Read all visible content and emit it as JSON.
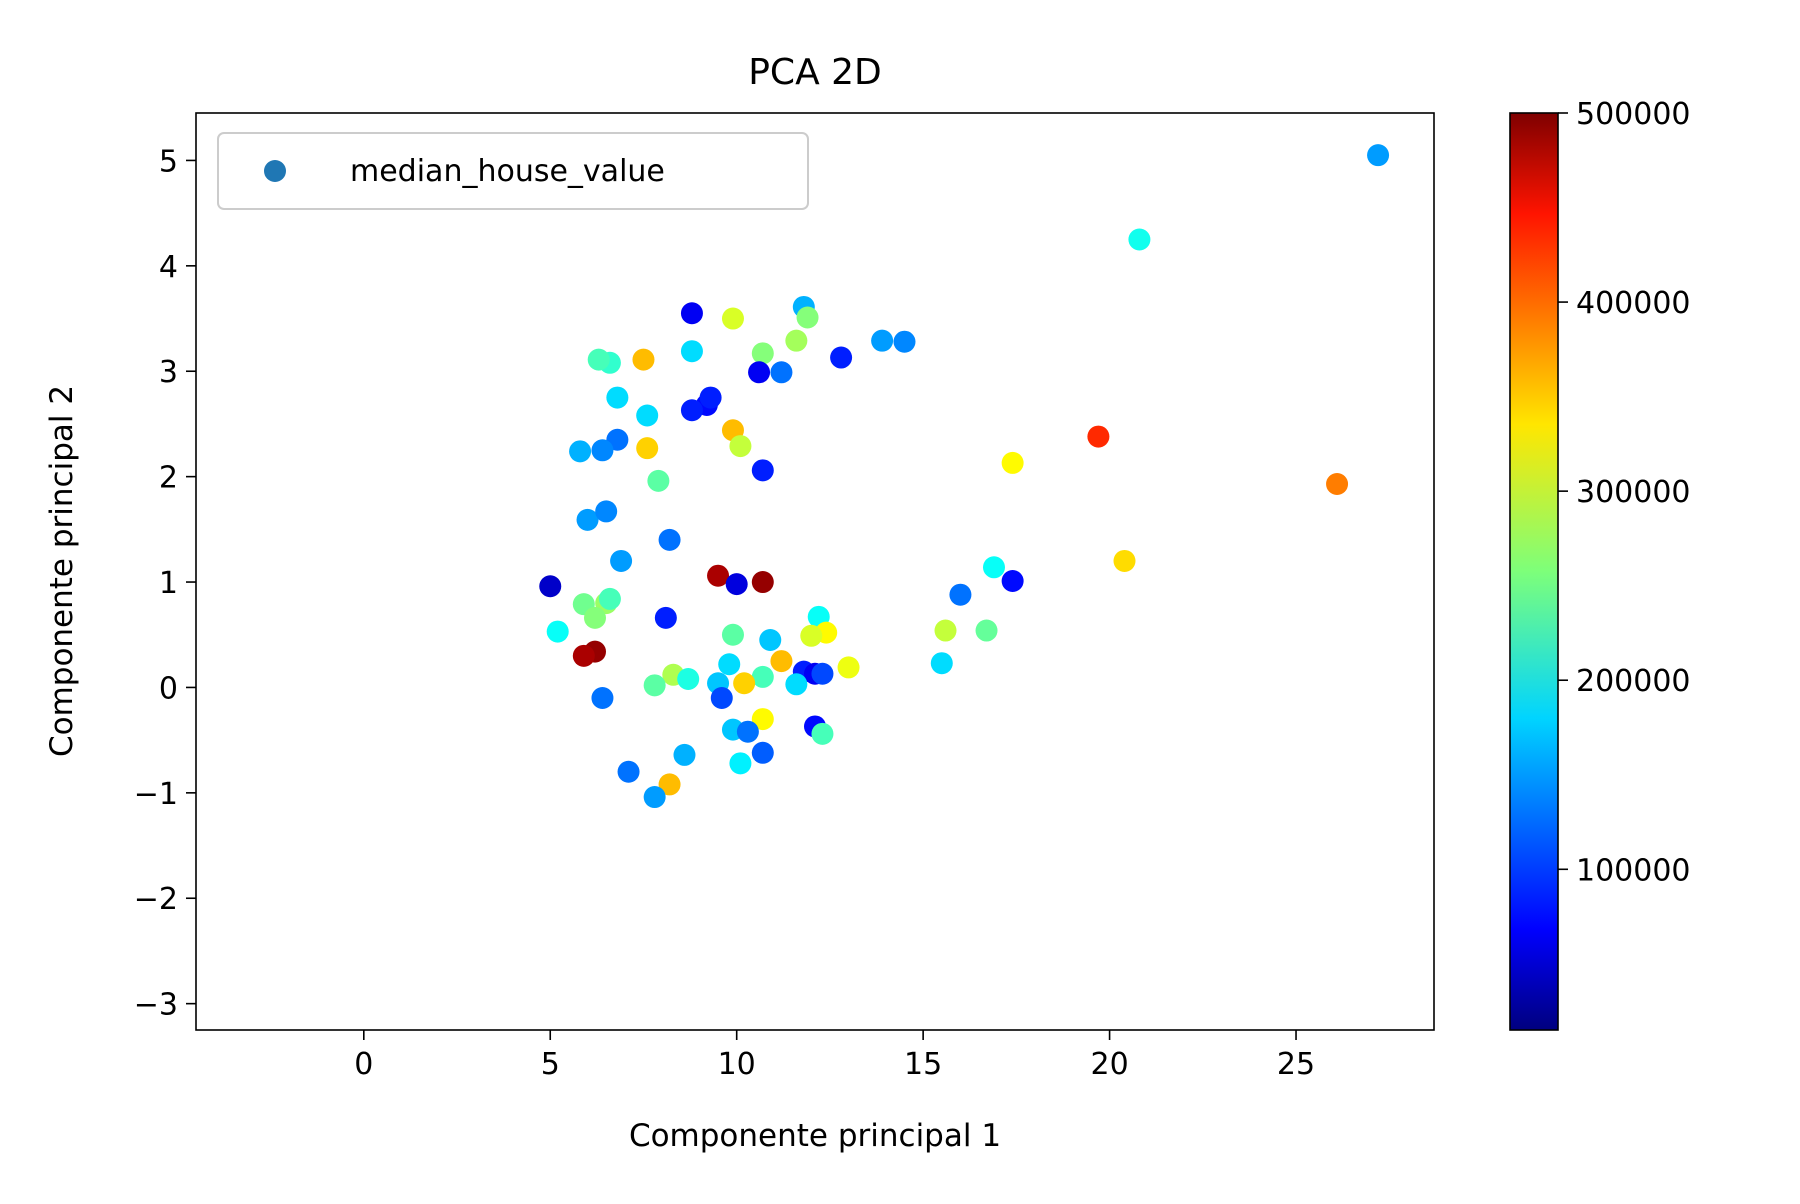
{
  "chart_data": {
    "type": "scatter",
    "title": "PCA 2D",
    "xlabel": "Componente principal 1",
    "ylabel": "Componente principal 2",
    "xlim": [
      -4.5,
      28.7
    ],
    "ylim": [
      -3.25,
      5.45
    ],
    "x_ticks": [
      0,
      5,
      10,
      15,
      20,
      25
    ],
    "y_ticks": [
      -3,
      -2,
      -1,
      0,
      1,
      2,
      3,
      4,
      5
    ],
    "x_tick_labels": [
      "0",
      "5",
      "10",
      "15",
      "20",
      "25"
    ],
    "y_tick_labels": [
      "−3",
      "−2",
      "−1",
      "0",
      "1",
      "2",
      "3",
      "4",
      "5"
    ],
    "legend": {
      "label": "median_house_value",
      "placement": "upper-left",
      "marker_color": "#1f77b4"
    },
    "grid": false,
    "colorbar": {
      "colormap": "jet",
      "min": 15000,
      "max": 500000,
      "ticks": [
        100000,
        200000,
        300000,
        400000,
        500000
      ],
      "tick_labels": [
        "100000",
        "200000",
        "300000",
        "400000",
        "500000"
      ]
    },
    "series": [
      {
        "color_by": "median_house_value",
        "points": [
          [
            27.2,
            5.05,
            150000
          ],
          [
            20.8,
            4.25,
            205000
          ],
          [
            19.7,
            2.38,
            420000
          ],
          [
            26.1,
            1.93,
            380000
          ],
          [
            17.4,
            2.13,
            320000
          ],
          [
            20.4,
            1.2,
            335000
          ],
          [
            16.9,
            1.14,
            200000
          ],
          [
            17.4,
            1.01,
            80000
          ],
          [
            16.0,
            0.88,
            130000
          ],
          [
            15.5,
            0.23,
            180000
          ],
          [
            15.6,
            0.54,
            290000
          ],
          [
            16.7,
            0.54,
            245000
          ],
          [
            13.9,
            3.29,
            150000
          ],
          [
            14.5,
            3.28,
            140000
          ],
          [
            12.8,
            3.13,
            90000
          ],
          [
            11.8,
            3.61,
            160000
          ],
          [
            11.9,
            3.51,
            260000
          ],
          [
            11.6,
            3.29,
            275000
          ],
          [
            10.7,
            3.17,
            260000
          ],
          [
            10.6,
            2.99,
            70000
          ],
          [
            11.2,
            2.99,
            130000
          ],
          [
            9.9,
            3.5,
            300000
          ],
          [
            8.8,
            3.55,
            70000
          ],
          [
            8.8,
            3.19,
            180000
          ],
          [
            9.2,
            2.68,
            80000
          ],
          [
            9.3,
            2.75,
            90000
          ],
          [
            8.8,
            2.63,
            90000
          ],
          [
            9.9,
            2.44,
            350000
          ],
          [
            10.1,
            2.29,
            290000
          ],
          [
            10.7,
            2.06,
            90000
          ],
          [
            7.5,
            3.11,
            350000
          ],
          [
            6.6,
            3.08,
            220000
          ],
          [
            6.3,
            3.11,
            230000
          ],
          [
            7.6,
            2.58,
            180000
          ],
          [
            6.8,
            2.75,
            180000
          ],
          [
            7.6,
            2.27,
            340000
          ],
          [
            6.8,
            2.35,
            130000
          ],
          [
            7.9,
            1.96,
            240000
          ],
          [
            6.4,
            2.25,
            140000
          ],
          [
            5.8,
            2.24,
            160000
          ],
          [
            8.2,
            1.4,
            130000
          ],
          [
            6.9,
            1.2,
            150000
          ],
          [
            6.0,
            1.59,
            150000
          ],
          [
            6.5,
            1.67,
            140000
          ],
          [
            9.5,
            1.06,
            480000
          ],
          [
            10.7,
            1.0,
            490000
          ],
          [
            10.0,
            0.98,
            60000
          ],
          [
            12.2,
            0.67,
            200000
          ],
          [
            12.4,
            0.52,
            320000
          ],
          [
            12.0,
            0.49,
            300000
          ],
          [
            13.0,
            0.19,
            310000
          ],
          [
            10.9,
            0.45,
            170000
          ],
          [
            9.9,
            0.5,
            240000
          ],
          [
            11.2,
            0.25,
            350000
          ],
          [
            11.8,
            0.15,
            90000
          ],
          [
            12.1,
            0.13,
            70000
          ],
          [
            12.3,
            0.13,
            110000
          ],
          [
            11.6,
            0.03,
            180000
          ],
          [
            10.7,
            0.1,
            230000
          ],
          [
            9.8,
            0.22,
            180000
          ],
          [
            10.2,
            0.04,
            340000
          ],
          [
            8.1,
            0.66,
            90000
          ],
          [
            8.3,
            0.12,
            280000
          ],
          [
            7.8,
            0.02,
            240000
          ],
          [
            8.7,
            0.08,
            210000
          ],
          [
            9.5,
            0.04,
            170000
          ],
          [
            9.6,
            -0.1,
            110000
          ],
          [
            10.7,
            -0.3,
            320000
          ],
          [
            12.1,
            -0.37,
            80000
          ],
          [
            12.3,
            -0.44,
            230000
          ],
          [
            9.9,
            -0.4,
            170000
          ],
          [
            10.3,
            -0.42,
            130000
          ],
          [
            10.1,
            -0.72,
            190000
          ],
          [
            10.7,
            -0.62,
            120000
          ],
          [
            8.2,
            -0.92,
            350000
          ],
          [
            8.6,
            -0.64,
            160000
          ],
          [
            7.8,
            -1.04,
            150000
          ],
          [
            7.1,
            -0.8,
            130000
          ],
          [
            6.2,
            0.34,
            490000
          ],
          [
            5.9,
            0.3,
            480000
          ],
          [
            5.9,
            0.79,
            250000
          ],
          [
            6.5,
            0.8,
            270000
          ],
          [
            6.6,
            0.84,
            230000
          ],
          [
            5.2,
            0.53,
            200000
          ],
          [
            5.0,
            0.96,
            50000
          ],
          [
            6.2,
            0.66,
            260000
          ],
          [
            6.4,
            -0.1,
            130000
          ]
        ]
      }
    ]
  }
}
